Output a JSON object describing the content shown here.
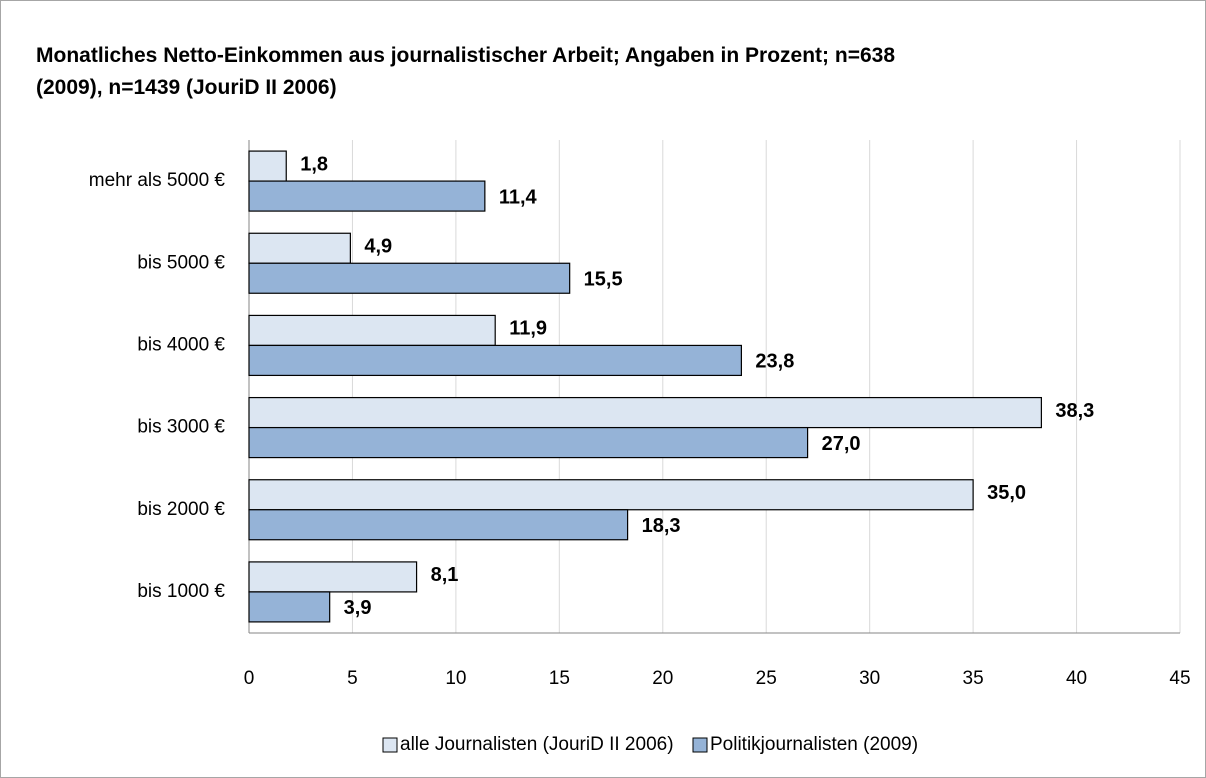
{
  "chart_data": {
    "type": "hbar",
    "title": "Monatliches Netto-Einkommen aus journalistischer Arbeit; Angaben in Prozent; n=638 (2009), n=1439 (JouriD II 2006)",
    "categories": [
      "mehr als 5000 €",
      "bis 5000 €",
      "bis 4000 €",
      "bis 3000 €",
      "bis 2000 €",
      "bis 1000 €"
    ],
    "series": [
      {
        "name": "alle Journalisten (JouriD II 2006)",
        "color": "#dce6f2",
        "values": [
          1.8,
          4.9,
          11.9,
          38.3,
          35.0,
          8.1
        ],
        "value_labels": [
          "1,8",
          "4,9",
          "11,9",
          "38,3",
          "35,0",
          "8,1"
        ]
      },
      {
        "name": "Politikjournalisten (2009)",
        "color": "#95b3d7",
        "values": [
          11.4,
          15.5,
          23.8,
          27.0,
          18.3,
          3.9
        ],
        "value_labels": [
          "11,4",
          "15,5",
          "23,8",
          "27,0",
          "18,3",
          "3,9"
        ]
      }
    ],
    "xlim": [
      0,
      45
    ],
    "xticks": [
      0,
      5,
      10,
      15,
      20,
      25,
      30,
      35,
      40,
      45
    ],
    "grid": true,
    "legend": "bottom"
  }
}
